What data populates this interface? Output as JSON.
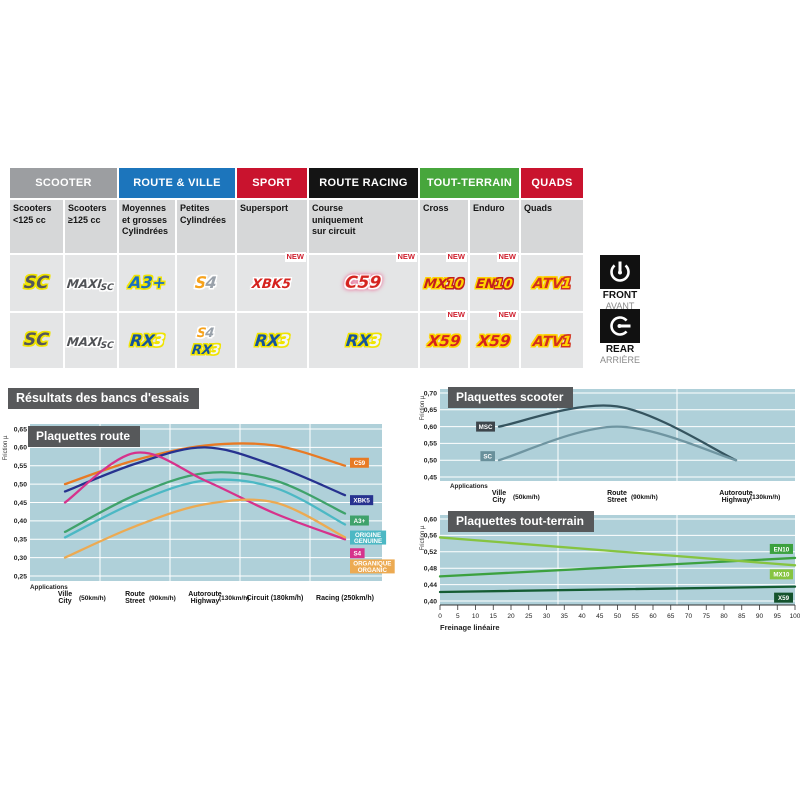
{
  "results_heading": "Résultats des bancs d'essais",
  "position_labels": {
    "front": {
      "en": "FRONT",
      "fr": "AVANT"
    },
    "rear": {
      "en": "REAR",
      "fr": "ARRIÈRE"
    }
  },
  "compat_table": {
    "new_badge": "NEW",
    "categories": [
      {
        "label": "SCOOTER",
        "color": "#9c9ea1",
        "span": 2
      },
      {
        "label": "ROUTE & VILLE",
        "color": "#1c75bc",
        "span": 2
      },
      {
        "label": "SPORT",
        "color": "#c9132e",
        "span": 1
      },
      {
        "label": "ROUTE RACING",
        "color": "#141414",
        "span": 1
      },
      {
        "label": "TOUT-TERRAIN",
        "color": "#47a63c",
        "span": 2
      },
      {
        "label": "QUADS",
        "color": "#c9132e",
        "span": 1
      }
    ],
    "subheaders": [
      "Scooters\n<125 cc",
      "Scooters\n≥125 cc",
      "Moyennes\net grosses\nCylindrées",
      "Petites\nCylindrées",
      "Supersport",
      "Course\nuniquement\nsur circuit",
      "Cross",
      "Enduro",
      "Quads"
    ],
    "rows": [
      {
        "position": "front",
        "cells": [
          {
            "logos": [
              "SC"
            ]
          },
          {
            "logos": [
              "MAXI SC"
            ]
          },
          {
            "logos": [
              "A3+"
            ]
          },
          {
            "logos": [
              "S4"
            ]
          },
          {
            "logos": [
              "XBK5"
            ],
            "new": true
          },
          {
            "logos": [
              "C59"
            ],
            "new": true
          },
          {
            "logos": [
              "MX10"
            ],
            "new": true
          },
          {
            "logos": [
              "EN10"
            ],
            "new": true
          },
          {
            "logos": [
              "ATV1"
            ]
          }
        ]
      },
      {
        "position": "rear",
        "cells": [
          {
            "logos": [
              "SC"
            ]
          },
          {
            "logos": [
              "MAXI SC"
            ]
          },
          {
            "logos": [
              "RX3"
            ]
          },
          {
            "logos": [
              "S4",
              "RX3"
            ]
          },
          {
            "logos": [
              "RX3"
            ]
          },
          {
            "logos": [
              "RX3"
            ]
          },
          {
            "logos": [
              "X59"
            ],
            "new": true
          },
          {
            "logos": [
              "X59"
            ],
            "new": true
          },
          {
            "logos": [
              "ATV1"
            ]
          }
        ]
      }
    ]
  },
  "chart_data": [
    {
      "id": "route",
      "type": "line",
      "title": "Plaquettes route",
      "ylabel": "Friction µ",
      "applications_label": "Applications",
      "ylim": [
        0.25,
        0.65
      ],
      "yticks": [
        "0,65",
        "0,60",
        "0,55",
        "0,50",
        "0,45",
        "0,40",
        "0,35",
        "0,30",
        "0,25"
      ],
      "grid": true,
      "legend_position": "right-of-line-end",
      "categories": [
        {
          "fr": "Ville",
          "en": "City",
          "speed": "(50km/h)"
        },
        {
          "fr": "Route",
          "en": "Street",
          "speed": "(90km/h)"
        },
        {
          "fr": "Autoroute",
          "en": "Highway",
          "speed": "(130km/h)"
        },
        {
          "fr": "Circuit",
          "speed": "(180km/h)"
        },
        {
          "fr": "Racing",
          "speed": "(250km/h)"
        }
      ],
      "series": [
        {
          "name": "C59",
          "color": "#e87a24",
          "values": [
            0.5,
            0.565,
            0.605,
            0.605,
            0.55
          ],
          "label_dy": -3
        },
        {
          "name": "XBK5",
          "color": "#26328f",
          "values": [
            0.48,
            0.555,
            0.6,
            0.55,
            0.47
          ],
          "label_dy": 5
        },
        {
          "name": "A3+",
          "color": "#3fa26b",
          "values": [
            0.37,
            0.47,
            0.53,
            0.51,
            0.42
          ],
          "label_dy": 7
        },
        {
          "name": "ORIGINE\nGENUINE",
          "color": "#4cb8c4",
          "values": [
            0.355,
            0.45,
            0.51,
            0.49,
            0.39
          ],
          "label_dy": 13
        },
        {
          "name": "S4",
          "color": "#d6328c",
          "values": [
            0.45,
            0.585,
            0.51,
            0.42,
            0.35
          ],
          "label_dy": 14
        },
        {
          "name": "ORGANIQUE\nORGANIC",
          "color": "#ecaa52",
          "values": [
            0.3,
            0.385,
            0.445,
            0.45,
            0.355
          ],
          "label_dy": 29
        }
      ]
    },
    {
      "id": "scooter",
      "type": "line",
      "title": "Plaquettes scooter",
      "ylabel": "Friction µ",
      "applications_label": "Applications",
      "ylim": [
        0.45,
        0.7
      ],
      "yticks": [
        "0,70",
        "0,65",
        "0,60",
        "0,55",
        "0,50",
        "0,45"
      ],
      "grid": true,
      "legend_position": "left-of-line-start",
      "categories": [
        {
          "fr": "Ville",
          "en": "City",
          "speed": "(50km/h)"
        },
        {
          "fr": "Route",
          "en": "Street",
          "speed": "(90km/h)"
        },
        {
          "fr": "Autoroute",
          "en": "Highway",
          "speed": "(130km/h)"
        }
      ],
      "series": [
        {
          "name": "MSC",
          "color": "#35545f",
          "box_color": "#3d454b",
          "values": [
            0.6,
            0.66,
            0.5
          ],
          "label_dy": 0
        },
        {
          "name": "SC",
          "color": "#6f95a1",
          "box_color": "#69909b",
          "values": [
            0.5,
            0.6,
            0.5
          ],
          "label_dy": -4
        }
      ]
    },
    {
      "id": "tout_terrain",
      "type": "line",
      "title": "Plaquettes tout-terrain",
      "ylabel": "Friction µ",
      "xlabel": "Freinage linéaire",
      "ylim": [
        0.4,
        0.6
      ],
      "yticks": [
        "0,60",
        "0,56",
        "0,52",
        "0,48",
        "0,44",
        "0,40"
      ],
      "x": [
        0,
        100
      ],
      "xticks": [
        0,
        5,
        10,
        15,
        20,
        25,
        30,
        35,
        40,
        45,
        50,
        55,
        60,
        65,
        70,
        75,
        80,
        85,
        90,
        95,
        100
      ],
      "grid": true,
      "legend_position": "inside-right",
      "series": [
        {
          "name": "EN10",
          "color": "#3ca13f",
          "values": [
            0.46,
            0.505
          ],
          "label_dy": -9
        },
        {
          "name": "MX10",
          "color": "#86c440",
          "values": [
            0.555,
            0.487
          ],
          "label_dy": 9
        },
        {
          "name": "X59",
          "color": "#145c33",
          "box_color": "#14532d",
          "values": [
            0.422,
            0.435
          ],
          "label_dy": 11
        }
      ]
    }
  ]
}
